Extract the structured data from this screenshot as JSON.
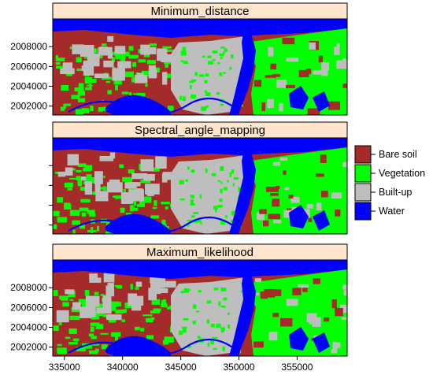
{
  "panels": [
    {
      "title": "Minimum_distance",
      "show_y_labels": true
    },
    {
      "title": "Spectral_angle_mapping",
      "show_y_labels": false
    },
    {
      "title": "Maximum_likelihood",
      "show_y_labels": true
    }
  ],
  "axes": {
    "x_ticks": [
      335000,
      340000,
      345000,
      350000,
      355000
    ],
    "x_tick_labels": [
      "335000",
      "340000",
      "345000",
      "350000",
      "355000"
    ],
    "y_ticks": [
      2008000,
      2006000,
      2004000,
      2002000
    ],
    "y_tick_labels": [
      "2008000",
      "2006000",
      "2004000",
      "2002000"
    ],
    "x_range": [
      334000,
      359300
    ],
    "y_range": [
      2001100,
      2010800
    ]
  },
  "legend": {
    "placement": "right",
    "items": [
      {
        "label": "Bare soil",
        "color": "#a52a2a"
      },
      {
        "label": "Vegetation",
        "color": "#00ff00"
      },
      {
        "label": "Built-up",
        "color": "#bebebe"
      },
      {
        "label": "Water",
        "color": "#0000ff"
      }
    ]
  },
  "colors": {
    "strip_bg": "#ffe5cc",
    "bare_soil": "#a52a2a",
    "vegetation": "#00ff00",
    "built_up": "#bebebe",
    "water": "#0000ff"
  }
}
